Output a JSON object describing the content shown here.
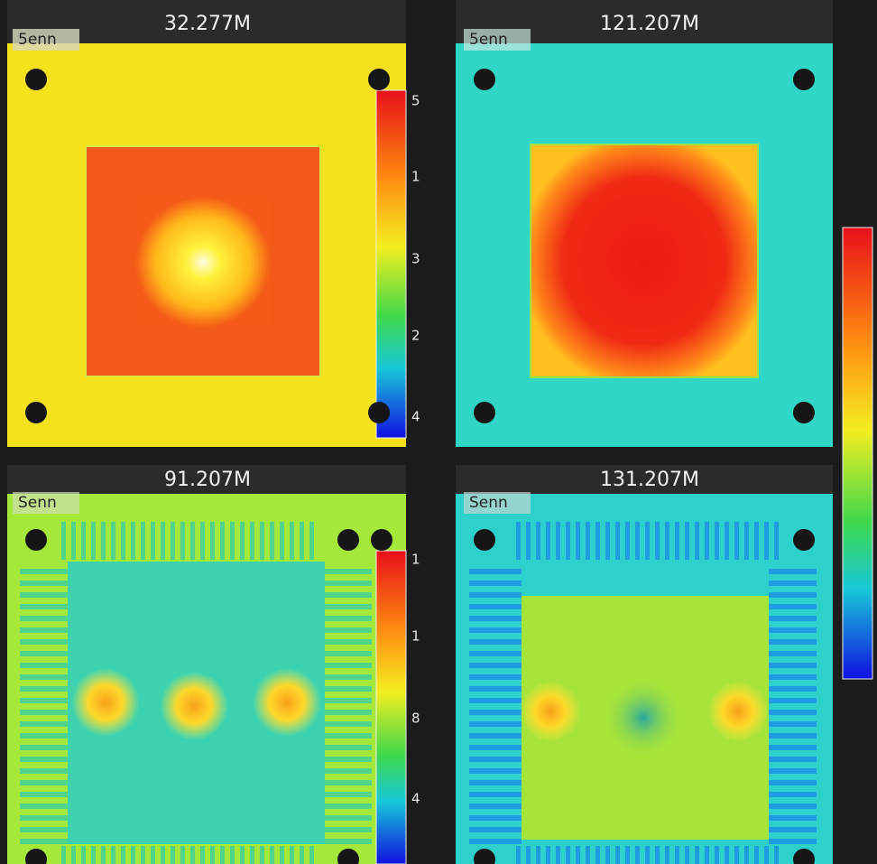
{
  "panels": [
    {
      "title": "32.277M",
      "scale_label": "5enn",
      "colorbar_labels": [
        "5",
        "1",
        "3",
        "2",
        "4"
      ]
    },
    {
      "title": "121.207M",
      "scale_label": "5enn"
    },
    {
      "title": "91.207M",
      "scale_label": "Senn",
      "colorbar_labels": [
        "1",
        "1",
        "8",
        "4"
      ]
    },
    {
      "title": "131.207M",
      "scale_label": "Senn"
    }
  ]
}
